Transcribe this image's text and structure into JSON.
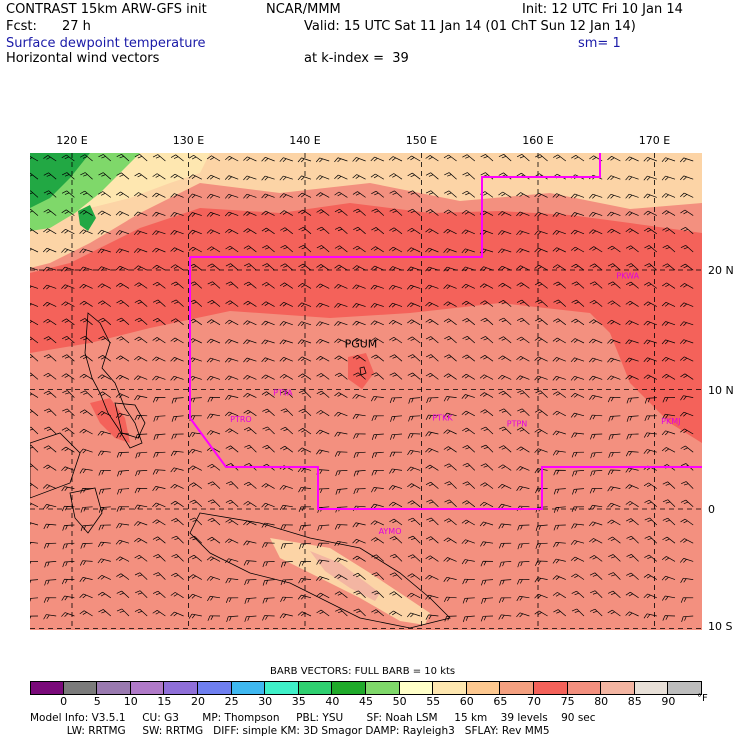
{
  "header": {
    "model": "CONTRAST 15km ARW-GFS init",
    "org": "NCAR/MMM",
    "init": "Init: 12 UTC Fri 10 Jan 14",
    "fcst_label": "Fcst:",
    "fcst_value": "27 h",
    "valid": "Valid: 15 UTC Sat 11 Jan 14 (01 ChT Sun 12 Jan 14)",
    "field1": "Surface dewpoint temperature",
    "smooth": "sm= 1",
    "field2": "Horizontal wind vectors",
    "level": "at k-index =  39"
  },
  "map": {
    "lon_labels": [
      "120 E",
      "130 E",
      "140 E",
      "150 E",
      "160 E",
      "170 E"
    ],
    "lat_labels": [
      "20 N",
      "10 N",
      "0",
      "10 S"
    ],
    "stations": [
      {
        "id": "PGUM",
        "lon": 144.8,
        "lat": 13.5,
        "color": "#000"
      },
      {
        "id": "PKWA",
        "lon": 167.7,
        "lat": 19.3,
        "color": "#e000e0"
      },
      {
        "id": "PTYA",
        "lon": 138.1,
        "lat": 9.5,
        "color": "#e000e0"
      },
      {
        "id": "PTRO",
        "lon": 134.5,
        "lat": 7.3,
        "color": "#e000e0"
      },
      {
        "id": "PTKK",
        "lon": 151.8,
        "lat": 7.4,
        "color": "#e000e0"
      },
      {
        "id": "PTPN",
        "lon": 158.2,
        "lat": 6.9,
        "color": "#e000e0"
      },
      {
        "id": "PKMJ",
        "lon": 171.4,
        "lat": 7.1,
        "color": "#e000e0"
      },
      {
        "id": "AYMO",
        "lon": 147.3,
        "lat": -2.1,
        "color": "#e000e0"
      }
    ],
    "colors": {
      "boundary": "#ff00ff",
      "ocean": "#f3907f",
      "warm": "#f4625a",
      "dry": "#fcd4a6",
      "moist": "#22a844"
    }
  },
  "legend": {
    "barb_note": "BARB VECTORS:  FULL BARB = 10 kts",
    "ticks": [
      "0",
      "5",
      "10",
      "15",
      "20",
      "25",
      "30",
      "35",
      "40",
      "45",
      "50",
      "55",
      "60",
      "65",
      "70",
      "75",
      "80",
      "85",
      "90"
    ],
    "unit": "°F",
    "colors": [
      "#7a0a7a",
      "#7b7b7b",
      "#9a7ab0",
      "#b07ac8",
      "#8f6fd8",
      "#6f7ff0",
      "#3fb8f0",
      "#3ff0c8",
      "#2fd070",
      "#1faa2a",
      "#7fd86a",
      "#ffffc8",
      "#fee7b0",
      "#fdc890",
      "#f4a080",
      "#f4625a",
      "#f3907f",
      "#f3b5a2",
      "#e8e0d8",
      "#bdbdbd"
    ]
  },
  "info": {
    "line1": "Model Info: V3.5.1     CU: G3       MP: Thompson     PBL: YSU       SF: Noah LSM     15 km    39 levels    90 sec",
    "line2": "           LW: RRTMG     SW: RRTMG   DIFF: simple KM: 3D Smagor DAMP: Rayleigh3   SFLAY: Rev MM5"
  }
}
